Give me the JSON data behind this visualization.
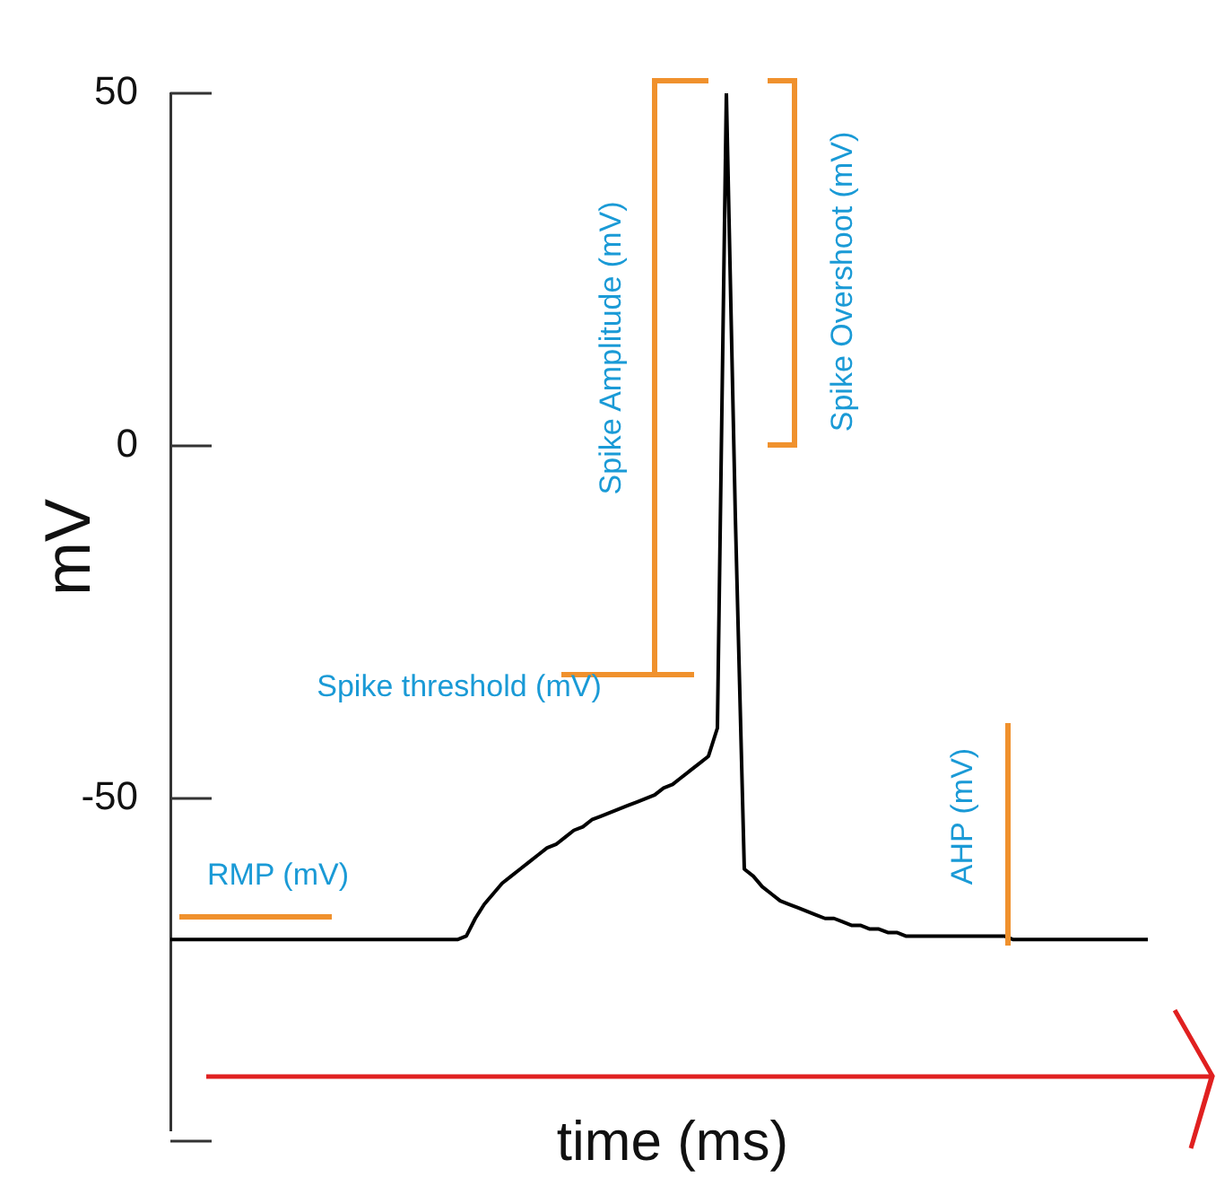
{
  "chart_data": {
    "type": "line",
    "xlabel": "time (ms)",
    "ylabel": "mV",
    "tick_labels": "y",
    "marker": "none",
    "annotations": [
      "RMP (mV)",
      "Spike threshold (mV)",
      "Spike Amplitude (mV)",
      "Spike Overshoot (mV)",
      "AHP (mV)"
    ],
    "categories": [
      null,
      null,
      null,
      null,
      null,
      null,
      null,
      null,
      null,
      null,
      null,
      null,
      null,
      null,
      null,
      null,
      null,
      null,
      null,
      null,
      null,
      null,
      null,
      null,
      null,
      null,
      null,
      null,
      null,
      null,
      null,
      null,
      null,
      null,
      null,
      null,
      null,
      null,
      null,
      null,
      null,
      null,
      null,
      null,
      null,
      null,
      null,
      null,
      null,
      null,
      null,
      null,
      null,
      null,
      null,
      null,
      null,
      null,
      null,
      null,
      null,
      null,
      null,
      null,
      null,
      null,
      null,
      null,
      null,
      null,
      null,
      null,
      null,
      null,
      null,
      null,
      null,
      null,
      null,
      null,
      null,
      null,
      null,
      null,
      null,
      null,
      null,
      null,
      null,
      null,
      null,
      null,
      null,
      null,
      null,
      null,
      null,
      null,
      null,
      null,
      null,
      null,
      null,
      null,
      null,
      null,
      null,
      null,
      null,
      null
    ],
    "ylim": [
      -97,
      50
    ],
    "yticks": [
      50,
      0,
      -50
    ],
    "series": [
      {
        "color": "#000000",
        "values": [
          -70,
          -70,
          -70,
          -70,
          -70,
          -70,
          -70,
          -70,
          -70,
          -70,
          -70,
          -70,
          -70,
          -70,
          -70,
          -70,
          -70,
          -70,
          -70,
          -70,
          -70,
          -70,
          -70,
          -70,
          -70,
          -70,
          -70,
          -70,
          -70,
          -70,
          -70,
          -70,
          -70,
          -69.5,
          -67,
          -65,
          -63.5,
          -62,
          -61,
          -60,
          -59,
          -58,
          -57,
          -56.5,
          -55.5,
          -54.5,
          -54,
          -53,
          -52.5,
          -52,
          -51.5,
          -51,
          -50.5,
          -50,
          -49.5,
          -48.5,
          -48,
          -47,
          -46,
          -45,
          -44,
          -40,
          50,
          -10,
          -60,
          -61,
          -62.5,
          -63.5,
          -64.5,
          -65,
          -65.5,
          -66,
          -66.5,
          -67,
          -67,
          -67.5,
          -68,
          -68,
          -68.5,
          -68.5,
          -69,
          -69,
          -69.5,
          -69.5,
          -69.5,
          -69.5,
          -69.5,
          -69.5,
          -69.5,
          -69.5,
          -69.5,
          -69.5,
          -69.5,
          -69.5,
          -70,
          -70,
          -70,
          -70,
          -70,
          -70,
          -70,
          -70,
          -70,
          -70,
          -70,
          -70,
          -70,
          -70,
          -70,
          -70
        ]
      }
    ]
  }
}
